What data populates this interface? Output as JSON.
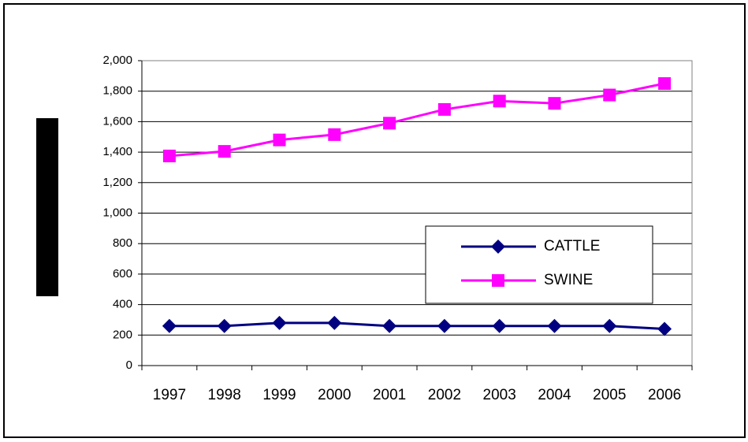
{
  "chart_data": {
    "type": "line",
    "categories": [
      "1997",
      "1998",
      "1999",
      "2000",
      "2001",
      "2002",
      "2003",
      "2004",
      "2005",
      "2006"
    ],
    "series": [
      {
        "name": "CATTLE",
        "color": "#000080",
        "marker": "diamond",
        "values": [
          260,
          260,
          280,
          280,
          260,
          260,
          260,
          260,
          260,
          240
        ]
      },
      {
        "name": "SWINE",
        "color": "#ff00ff",
        "marker": "square",
        "values": [
          1375,
          1405,
          1480,
          1515,
          1590,
          1680,
          1735,
          1720,
          1775,
          1850
        ]
      }
    ],
    "ylim": [
      0,
      2000
    ],
    "yticks": [
      0,
      200,
      400,
      600,
      800,
      {
        "value": 1000,
        "label": "1,000"
      },
      {
        "value": 1200,
        "label": "1,200"
      },
      {
        "value": 1400,
        "label": "1,400"
      },
      {
        "value": 1600,
        "label": "1,600"
      },
      {
        "value": 1800,
        "label": "1,800"
      },
      {
        "value": 2000,
        "label": "2,000"
      }
    ],
    "grid": true
  }
}
